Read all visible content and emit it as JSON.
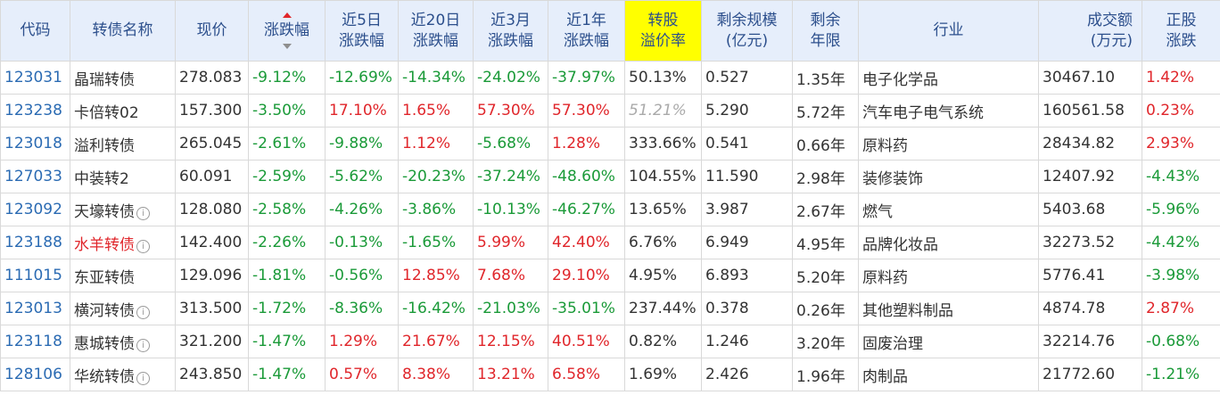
{
  "headers": {
    "code": "代码",
    "name": "转债名称",
    "price": "现价",
    "change": "涨跌幅",
    "d5_l1": "近5日",
    "d5_l2": "涨跌幅",
    "d20_l1": "近20日",
    "d20_l2": "涨跌幅",
    "m3_l1": "近3月",
    "m3_l2": "涨跌幅",
    "y1_l1": "近1年",
    "y1_l2": "涨跌幅",
    "prem_l1": "转股",
    "prem_l2": "溢价率",
    "scale_l1": "剩余规模",
    "scale_l2": "(亿元)",
    "years_l1": "剩余",
    "years_l2": "年限",
    "industry": "行业",
    "amount_l1": "成交额",
    "amount_l2": "(万元)",
    "stock_l1": "正股",
    "stock_l2": "涨跌"
  },
  "icons": {
    "info": "info-icon",
    "sort": "sort-desc-icon"
  },
  "colors": {
    "up": "#e0262b",
    "down": "#1a9a38",
    "code": "#2b6bb3",
    "header_bg": "#e6eefb",
    "highlight": "#ffff00"
  },
  "rows": [
    {
      "code": "123031",
      "name": "晶瑞转债",
      "name_red": false,
      "info": false,
      "price": "278.083",
      "change": "-9.12%",
      "d5": "-12.69%",
      "d20": "-14.34%",
      "m3": "-24.02%",
      "y1": "-37.97%",
      "premium": "50.13%",
      "premium_muted": false,
      "scale": "0.527",
      "years": "1.35年",
      "industry": "电子化学品",
      "amount": "30467.10",
      "stock": "1.42%"
    },
    {
      "code": "123238",
      "name": "卡倍转02",
      "name_red": false,
      "info": false,
      "price": "157.300",
      "change": "-3.50%",
      "d5": "17.10%",
      "d20": "1.65%",
      "m3": "57.30%",
      "y1": "57.30%",
      "premium": "51.21%",
      "premium_muted": true,
      "scale": "5.290",
      "years": "5.72年",
      "industry": "汽车电子电气系统",
      "amount": "160561.58",
      "stock": "0.23%"
    },
    {
      "code": "123018",
      "name": "溢利转债",
      "name_red": false,
      "info": false,
      "price": "265.045",
      "change": "-2.61%",
      "d5": "-9.88%",
      "d20": "1.12%",
      "m3": "-5.68%",
      "y1": "1.28%",
      "premium": "333.66%",
      "premium_muted": false,
      "scale": "0.541",
      "years": "0.66年",
      "industry": "原料药",
      "amount": "28434.82",
      "stock": "2.93%"
    },
    {
      "code": "127033",
      "name": "中装转2",
      "name_red": false,
      "info": false,
      "price": "60.091",
      "change": "-2.59%",
      "d5": "-5.62%",
      "d20": "-20.23%",
      "m3": "-37.24%",
      "y1": "-48.60%",
      "premium": "104.55%",
      "premium_muted": false,
      "scale": "11.590",
      "years": "2.98年",
      "industry": "装修装饰",
      "amount": "12407.92",
      "stock": "-4.43%"
    },
    {
      "code": "123092",
      "name": "天壕转债",
      "name_red": false,
      "info": true,
      "price": "128.080",
      "change": "-2.58%",
      "d5": "-4.26%",
      "d20": "-3.86%",
      "m3": "-10.13%",
      "y1": "-46.27%",
      "premium": "13.65%",
      "premium_muted": false,
      "scale": "3.987",
      "years": "2.67年",
      "industry": "燃气",
      "amount": "5403.68",
      "stock": "-5.96%"
    },
    {
      "code": "123188",
      "name": "水羊转债",
      "name_red": true,
      "info": true,
      "price": "142.400",
      "change": "-2.26%",
      "d5": "-0.13%",
      "d20": "-1.65%",
      "m3": "5.99%",
      "y1": "42.40%",
      "premium": "6.76%",
      "premium_muted": false,
      "scale": "6.949",
      "years": "4.95年",
      "industry": "品牌化妆品",
      "amount": "32273.52",
      "stock": "-4.42%"
    },
    {
      "code": "111015",
      "name": "东亚转债",
      "name_red": false,
      "info": false,
      "price": "129.096",
      "change": "-1.81%",
      "d5": "-0.56%",
      "d20": "12.85%",
      "m3": "7.68%",
      "y1": "29.10%",
      "premium": "4.95%",
      "premium_muted": false,
      "scale": "6.893",
      "years": "5.20年",
      "industry": "原料药",
      "amount": "5776.41",
      "stock": "-3.98%"
    },
    {
      "code": "123013",
      "name": "横河转债",
      "name_red": false,
      "info": true,
      "price": "313.500",
      "change": "-1.72%",
      "d5": "-8.36%",
      "d20": "-16.42%",
      "m3": "-21.03%",
      "y1": "-35.01%",
      "premium": "237.44%",
      "premium_muted": false,
      "scale": "0.378",
      "years": "0.26年",
      "industry": "其他塑料制品",
      "amount": "4874.78",
      "stock": "2.87%"
    },
    {
      "code": "123118",
      "name": "惠城转债",
      "name_red": false,
      "info": true,
      "price": "321.200",
      "change": "-1.47%",
      "d5": "1.29%",
      "d20": "21.67%",
      "m3": "12.15%",
      "y1": "40.51%",
      "premium": "0.82%",
      "premium_muted": false,
      "scale": "1.246",
      "years": "3.20年",
      "industry": "固废治理",
      "amount": "32214.76",
      "stock": "-0.68%"
    },
    {
      "code": "128106",
      "name": "华统转债",
      "name_red": false,
      "info": true,
      "price": "243.850",
      "change": "-1.47%",
      "d5": "0.57%",
      "d20": "8.38%",
      "m3": "13.21%",
      "y1": "6.58%",
      "premium": "1.69%",
      "premium_muted": false,
      "scale": "2.426",
      "years": "1.96年",
      "industry": "肉制品",
      "amount": "21772.60",
      "stock": "-1.21%"
    }
  ]
}
